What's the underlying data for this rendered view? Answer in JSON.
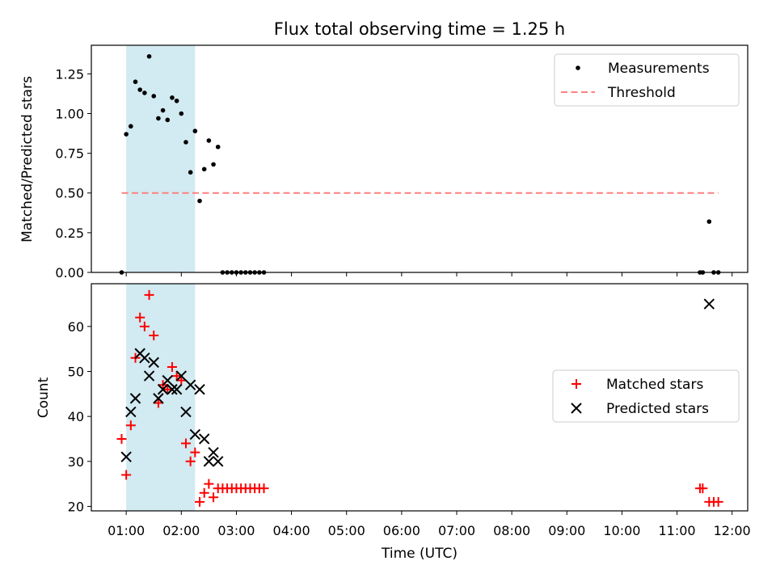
{
  "figure": {
    "title": "Flux total observing time = 1.25 h"
  },
  "colors": {
    "measure": "#000000",
    "threshold": "#ff7f7f",
    "matched": "#ff0000",
    "predicted": "#000000",
    "span": "#add8e6"
  },
  "chart_data": [
    {
      "type": "scatter",
      "ylabel": "Matched/Predicted stars",
      "xlim": [
        "00:22",
        "12:17"
      ],
      "ylim": [
        0,
        1.43
      ],
      "yticks": [
        0.0,
        0.25,
        0.5,
        0.75,
        1.0,
        1.25
      ],
      "ytick_labels": [
        "0.00",
        "0.25",
        "0.50",
        "0.75",
        "1.00",
        "1.25"
      ],
      "shaded_span": [
        "01:00",
        "02:15"
      ],
      "legend": {
        "position": "upper-right",
        "entries": [
          "Measurements",
          "Threshold"
        ]
      },
      "series": [
        {
          "name": "Measurements",
          "marker": "dot",
          "points": [
            [
              "00:55",
              0.0
            ],
            [
              "01:00",
              0.87
            ],
            [
              "01:05",
              0.92
            ],
            [
              "01:10",
              1.2
            ],
            [
              "01:15",
              1.15
            ],
            [
              "01:20",
              1.13
            ],
            [
              "01:25",
              1.36
            ],
            [
              "01:30",
              1.11
            ],
            [
              "01:35",
              0.97
            ],
            [
              "01:40",
              1.02
            ],
            [
              "01:45",
              0.96
            ],
            [
              "01:50",
              1.1
            ],
            [
              "01:55",
              1.08
            ],
            [
              "02:00",
              1.0
            ],
            [
              "02:05",
              0.82
            ],
            [
              "02:10",
              0.63
            ],
            [
              "02:15",
              0.89
            ],
            [
              "02:20",
              0.45
            ],
            [
              "02:25",
              0.65
            ],
            [
              "02:30",
              0.83
            ],
            [
              "02:35",
              0.68
            ],
            [
              "02:40",
              0.79
            ],
            [
              "02:45",
              0.0
            ],
            [
              "02:50",
              0.0
            ],
            [
              "02:55",
              0.0
            ],
            [
              "03:00",
              0.0
            ],
            [
              "03:05",
              0.0
            ],
            [
              "03:10",
              0.0
            ],
            [
              "03:15",
              0.0
            ],
            [
              "03:20",
              0.0
            ],
            [
              "03:25",
              0.0
            ],
            [
              "03:30",
              0.0
            ],
            [
              "11:25",
              0.0
            ],
            [
              "11:28",
              0.0
            ],
            [
              "11:35",
              0.32
            ],
            [
              "11:40",
              0.0
            ],
            [
              "11:45",
              0.0
            ]
          ]
        },
        {
          "name": "Threshold",
          "style": "dashed",
          "points": [
            [
              "00:55",
              0.5
            ],
            [
              "11:45",
              0.5
            ]
          ]
        }
      ]
    },
    {
      "type": "scatter",
      "ylabel": "Count",
      "xlabel": "Time (UTC)",
      "xlim": [
        "00:22",
        "12:17"
      ],
      "ylim": [
        19,
        69.5
      ],
      "yticks": [
        20,
        30,
        40,
        50,
        60
      ],
      "ytick_labels": [
        "20",
        "30",
        "40",
        "50",
        "60"
      ],
      "xticks": [
        "01:00",
        "02:00",
        "03:00",
        "04:00",
        "05:00",
        "06:00",
        "07:00",
        "08:00",
        "09:00",
        "10:00",
        "11:00",
        "12:00"
      ],
      "shaded_span": [
        "01:00",
        "02:15"
      ],
      "legend": {
        "position": "center-right",
        "entries": [
          "Matched stars",
          "Predicted stars"
        ]
      },
      "series": [
        {
          "name": "Matched stars",
          "marker": "plus",
          "points": [
            [
              "00:55",
              35
            ],
            [
              "01:00",
              27
            ],
            [
              "01:05",
              38
            ],
            [
              "01:10",
              53
            ],
            [
              "01:15",
              62
            ],
            [
              "01:20",
              60
            ],
            [
              "01:25",
              67
            ],
            [
              "01:30",
              58
            ],
            [
              "01:35",
              43
            ],
            [
              "01:40",
              47
            ],
            [
              "01:45",
              46
            ],
            [
              "01:50",
              51
            ],
            [
              "01:55",
              49
            ],
            [
              "02:00",
              48
            ],
            [
              "02:05",
              34
            ],
            [
              "02:10",
              30
            ],
            [
              "02:15",
              32
            ],
            [
              "02:20",
              21
            ],
            [
              "02:25",
              23
            ],
            [
              "02:30",
              25
            ],
            [
              "02:35",
              22
            ],
            [
              "02:40",
              24
            ],
            [
              "02:45",
              24
            ],
            [
              "02:50",
              24
            ],
            [
              "02:55",
              24
            ],
            [
              "03:00",
              24
            ],
            [
              "03:05",
              24
            ],
            [
              "03:10",
              24
            ],
            [
              "03:15",
              24
            ],
            [
              "03:20",
              24
            ],
            [
              "03:25",
              24
            ],
            [
              "03:30",
              24
            ],
            [
              "11:25",
              24
            ],
            [
              "11:28",
              24
            ],
            [
              "11:35",
              21
            ],
            [
              "11:40",
              21
            ],
            [
              "11:45",
              21
            ]
          ]
        },
        {
          "name": "Predicted stars",
          "marker": "x",
          "points": [
            [
              "01:00",
              31
            ],
            [
              "01:05",
              41
            ],
            [
              "01:10",
              44
            ],
            [
              "01:15",
              54
            ],
            [
              "01:20",
              53
            ],
            [
              "01:25",
              49
            ],
            [
              "01:30",
              52
            ],
            [
              "01:35",
              44
            ],
            [
              "01:40",
              46
            ],
            [
              "01:45",
              48
            ],
            [
              "01:50",
              46
            ],
            [
              "01:55",
              46
            ],
            [
              "02:00",
              49
            ],
            [
              "02:05",
              41
            ],
            [
              "02:10",
              47
            ],
            [
              "02:15",
              36
            ],
            [
              "02:20",
              46
            ],
            [
              "02:25",
              35
            ],
            [
              "02:30",
              30
            ],
            [
              "02:35",
              32
            ],
            [
              "02:40",
              30
            ],
            [
              "11:35",
              65
            ]
          ]
        }
      ]
    }
  ]
}
